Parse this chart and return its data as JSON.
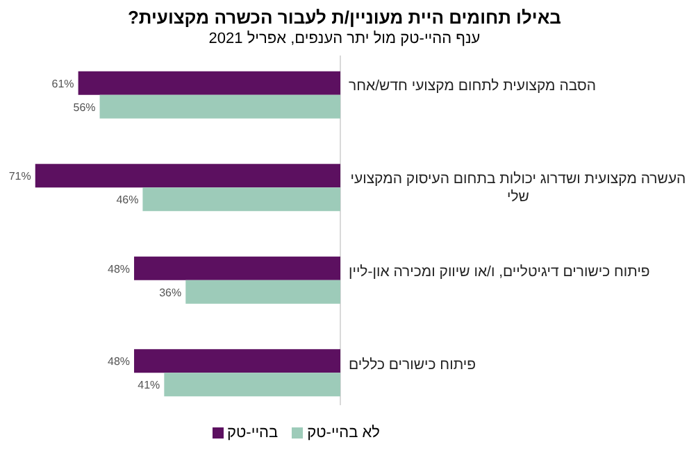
{
  "chart_data": {
    "type": "bar",
    "orientation": "horizontal",
    "title": "באילו תחומים היית מעוניין/ת לעבור הכשרה מקצועית?",
    "subtitle": "ענף ההיי-טק מול יתר הענפים, אפריל 2021",
    "categories": [
      "הסבה מקצועית לתחום מקצועי חדש/אחר",
      "העשרה מקצועית ושדרוג יכולות בתחום העיסוק המקצועי שלי",
      "פיתוח כישורים דיגיטליים, ו/או שיווק ומכירה און-ליין",
      "פיתוח כישורים כללים"
    ],
    "tick_labels": "y",
    "legend": "bottom",
    "series": [
      {
        "name": "בהיי-טק",
        "color": "#5c1060",
        "values": [
          61,
          71,
          48,
          48
        ],
        "value_labels": [
          "61%",
          "71%",
          "48%",
          "48%"
        ]
      },
      {
        "name": "לא בהיי-טק",
        "color": "#9dcbb9",
        "values": [
          56,
          46,
          36,
          41
        ],
        "value_labels": [
          "56%",
          "46%",
          "36%",
          "41%"
        ]
      }
    ]
  }
}
